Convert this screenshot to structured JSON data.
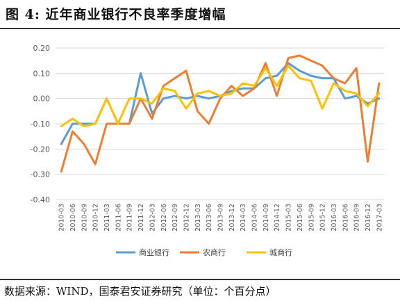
{
  "figure": {
    "title": "图 4:  近年商业银行不良率季度增幅",
    "source": "数据来源：WIND，国泰君安证券研究（单位：个百分点）"
  },
  "chart_data": {
    "type": "line",
    "title": "",
    "xlabel": "",
    "ylabel": "",
    "ylim": [
      -0.4,
      0.2
    ],
    "y_ticks": [
      "0.20",
      "0.10",
      "0.00",
      "-0.10",
      "-0.20",
      "-0.30",
      "-0.40"
    ],
    "grid": true,
    "legend_position": "bottom",
    "categories": [
      "2010-03",
      "2010-06",
      "2010-09",
      "2010-12",
      "2011-03",
      "2011-06",
      "2011-09",
      "2011-12",
      "2012-03",
      "2012-06",
      "2012-09",
      "2012-12",
      "2013-03",
      "2013-06",
      "2013-09",
      "2013-12",
      "2014-03",
      "2014-06",
      "2014-09",
      "2014-12",
      "2015-03",
      "2015-06",
      "2015-09",
      "2015-12",
      "2016-03",
      "2016-06",
      "2016-09",
      "2016-12",
      "2017-03"
    ],
    "series": [
      {
        "name": "商业银行",
        "color": "#5B9BD5",
        "values": [
          -0.18,
          -0.1,
          -0.1,
          -0.1,
          0.0,
          -0.1,
          -0.1,
          0.1,
          -0.06,
          0.0,
          0.01,
          0.0,
          0.01,
          0.0,
          0.01,
          0.03,
          0.04,
          0.04,
          0.08,
          0.09,
          0.14,
          0.11,
          0.09,
          0.08,
          0.08,
          0.0,
          0.01,
          -0.02,
          0.0
        ]
      },
      {
        "name": "农商行",
        "color": "#ED7D31",
        "values": [
          -0.29,
          -0.13,
          -0.18,
          -0.26,
          -0.1,
          -0.1,
          -0.1,
          0.0,
          -0.08,
          0.05,
          0.08,
          0.11,
          -0.05,
          -0.1,
          0.0,
          0.05,
          0.01,
          0.04,
          0.14,
          0.01,
          0.16,
          0.17,
          0.15,
          0.13,
          0.08,
          0.06,
          0.12,
          -0.25,
          0.06
        ]
      },
      {
        "name": "城商行",
        "color": "#FFC000",
        "values": [
          -0.11,
          -0.08,
          -0.11,
          -0.1,
          0.0,
          -0.1,
          0.0,
          0.0,
          -0.02,
          0.04,
          0.03,
          -0.04,
          0.02,
          0.03,
          0.01,
          0.02,
          0.06,
          0.05,
          0.12,
          0.05,
          0.13,
          0.08,
          0.07,
          -0.04,
          0.06,
          0.03,
          0.02,
          -0.03,
          0.02
        ]
      }
    ]
  }
}
